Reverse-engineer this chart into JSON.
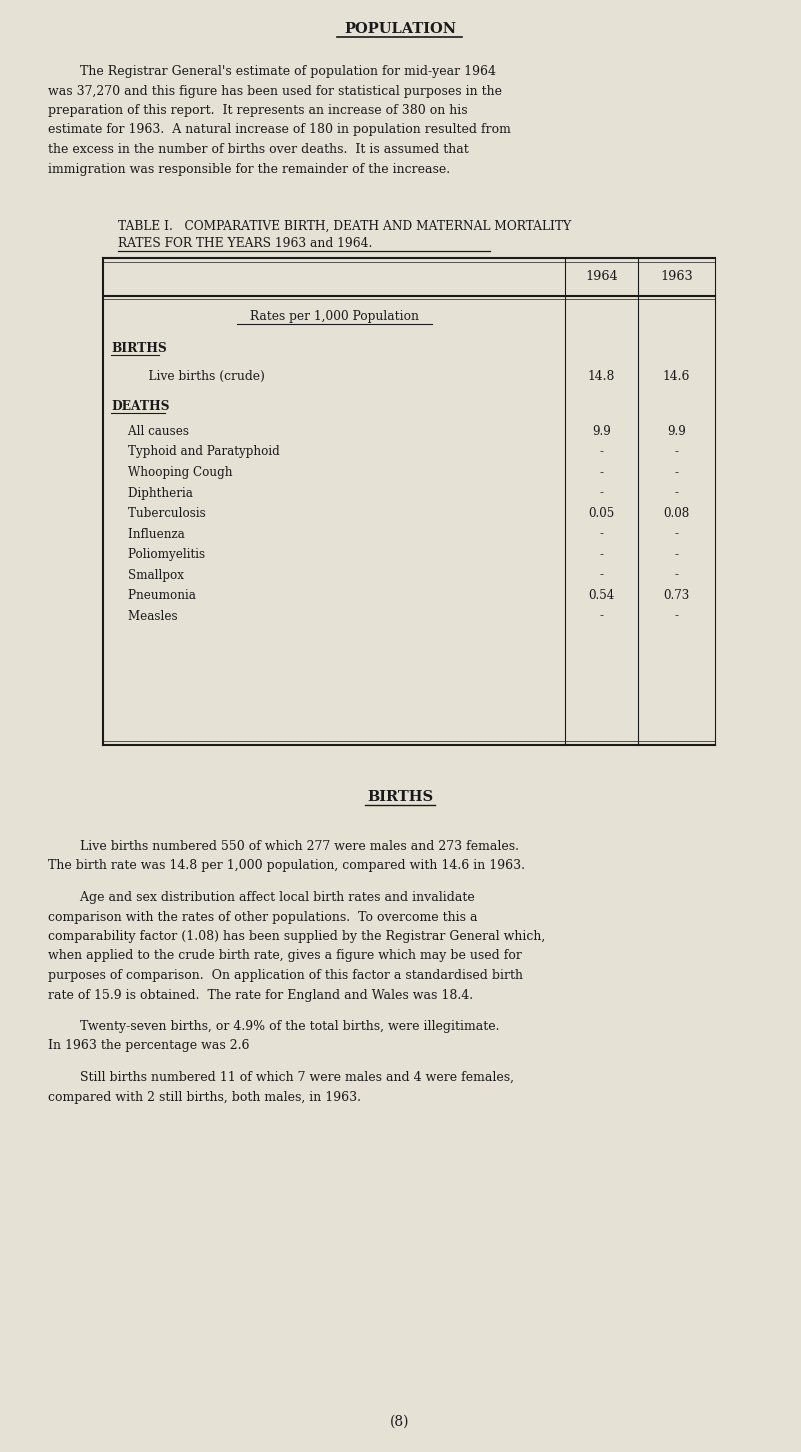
{
  "bg_color": "#e5e1d5",
  "text_color": "#1a1a1a",
  "title": "POPULATION",
  "para1_line1": "        The Registrar General's estimate of population for mid-year 1964",
  "para1_line2": "was 37,270 and this figure has been used for statistical purposes in the",
  "para1_line3": "preparation of this report.  It represents an increase of 380 on his",
  "para1_line4": "estimate for 1963.  A natural increase of 180 in population resulted from",
  "para1_line5": "the excess in the number of births over deaths.  It is assumed that",
  "para1_line6": "immigration was responsible for the remainder of the increase.",
  "table_title_line1": "TABLE I.   COMPARATIVE BIRTH, DEATH AND MATERNAL MORTALITY",
  "table_title_line2": "RATES FOR THE YEARS 1963 and 1964.",
  "col_header_1964": "1964",
  "col_header_1963": "1963",
  "rates_header": "Rates per 1,000 Population",
  "births_label": "BIRTHS",
  "live_births_label": "    Live births (crude)",
  "live_births_1964": "14.8",
  "live_births_1963": "14.6",
  "deaths_label": "DEATHS",
  "death_rows": [
    [
      "    All causes",
      "9.9",
      "9.9"
    ],
    [
      "    Typhoid and Paratyphoid",
      "-",
      "-"
    ],
    [
      "    Whooping Cough",
      "-",
      "-"
    ],
    [
      "    Diphtheria",
      "-",
      "-"
    ],
    [
      "    Tuberculosis",
      "0.05",
      "0.08"
    ],
    [
      "    Influenza",
      "-",
      "-"
    ],
    [
      "    Poliomyelitis",
      "-",
      "-"
    ],
    [
      "    Smallpox",
      "-",
      "-"
    ],
    [
      "    Pneumonia",
      "0.54",
      "0.73"
    ],
    [
      "    Measles",
      "-",
      "-"
    ]
  ],
  "births_section_title": "BIRTHS",
  "bp1_indent": "        Live births numbered 550 of which 277 were males and 273 females.",
  "bp1_line2": "The birth rate was 14.8 per 1,000 population, compared with 14.6 in 1963.",
  "bp2_indent": "        Age and sex distribution affect local birth rates and invalidate",
  "bp2_line2": "comparison with the rates of other populations.  To overcome this a",
  "bp2_line3": "comparability factor (1.08) has been supplied by the Registrar General which,",
  "bp2_line4": "when applied to the crude birth rate, gives a figure which may be used for",
  "bp2_line5": "purposes of comparison.  On application of this factor a standardised birth",
  "bp2_line6": "rate of 15.9 is obtained.  The rate for England and Wales was 18.4.",
  "bp3_indent": "        Twenty-seven births, or 4.9% of the total births, were illegitimate.",
  "bp3_line2": "In 1963 the percentage was 2.6",
  "bp4_indent": "        Still births numbered 11 of which 7 were males and 4 were females,",
  "bp4_line2": "compared with 2 still births, both males, in 1963.",
  "page_number": "(8)"
}
